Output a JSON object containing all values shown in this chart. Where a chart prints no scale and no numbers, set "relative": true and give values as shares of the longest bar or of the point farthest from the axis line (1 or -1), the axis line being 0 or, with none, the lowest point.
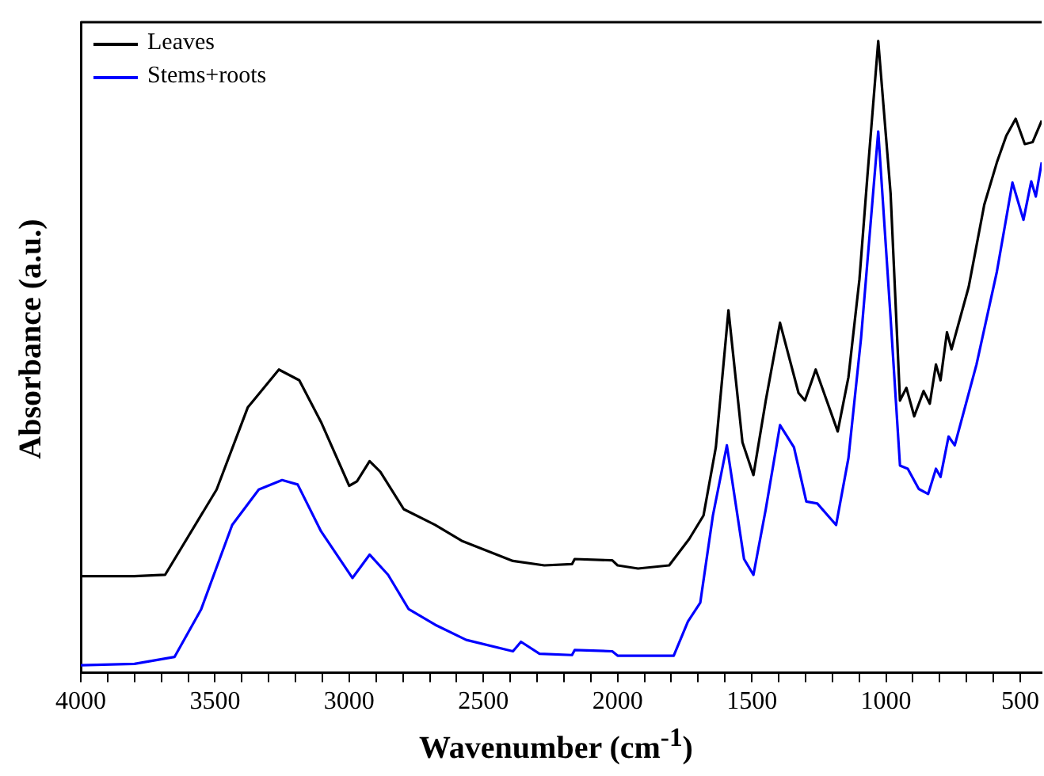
{
  "chart_data": {
    "type": "line",
    "relative": true,
    "xlabel": "Wavenumber (cm$^{-1}$)",
    "ylabel": "Absorbance (a.u.)",
    "legend": "top left",
    "marker": "none",
    "line_style": "solid",
    "xlim": [
      4000,
      420
    ],
    "xticks": [
      4000,
      {
        "value": 3900,
        "label": null
      },
      {
        "value": 3800,
        "label": null
      },
      {
        "value": 3700,
        "label": null
      },
      {
        "value": 3600,
        "label": null
      },
      3500,
      {
        "value": 3400,
        "label": null
      },
      {
        "value": 3300,
        "label": null
      },
      {
        "value": 3200,
        "label": null
      },
      {
        "value": 3100,
        "label": null
      },
      3000,
      {
        "value": 2900,
        "label": null
      },
      {
        "value": 2800,
        "label": null
      },
      {
        "value": 2700,
        "label": null
      },
      {
        "value": 2600,
        "label": null
      },
      2500,
      {
        "value": 2400,
        "label": null
      },
      {
        "value": 2300,
        "label": null
      },
      {
        "value": 2200,
        "label": null
      },
      {
        "value": 2100,
        "label": null
      },
      2000,
      {
        "value": 1900,
        "label": null
      },
      {
        "value": 1800,
        "label": null
      },
      {
        "value": 1700,
        "label": null
      },
      {
        "value": 1600,
        "label": null
      },
      1500,
      {
        "value": 1400,
        "label": null
      },
      {
        "value": 1300,
        "label": null
      },
      {
        "value": 1200,
        "label": null
      },
      {
        "value": 1100,
        "label": null
      },
      1000,
      {
        "value": 900,
        "label": null
      },
      {
        "value": 800,
        "label": null
      },
      {
        "value": 700,
        "label": null
      },
      {
        "value": 600,
        "label": null
      },
      500
    ],
    "series": [
      {
        "name": "Leaves",
        "color": "#000000",
        "x": [
          4000,
          3800,
          3686,
          3494,
          3378,
          3262,
          3186,
          3105,
          3000,
          2971,
          2924,
          2884,
          2797,
          2680,
          2581,
          2390,
          2273,
          2170,
          2160,
          2020,
          2000,
          1924,
          1808,
          1733,
          1680,
          1634,
          1587,
          1535,
          1494,
          1448,
          1395,
          1326,
          1302,
          1262,
          1180,
          1140,
          1099,
          1070,
          1029,
          983,
          948,
          924,
          895,
          860,
          837,
          814,
          797,
          773,
          756,
          692,
          634,
          587,
          552,
          517,
          483,
          454,
          420
        ],
        "values": [
          0.153,
          0.153,
          0.155,
          0.29,
          0.42,
          0.48,
          0.463,
          0.397,
          0.296,
          0.303,
          0.335,
          0.318,
          0.259,
          0.234,
          0.209,
          0.177,
          0.17,
          0.172,
          0.18,
          0.178,
          0.17,
          0.165,
          0.17,
          0.212,
          0.249,
          0.357,
          0.574,
          0.365,
          0.313,
          0.431,
          0.554,
          0.443,
          0.431,
          0.48,
          0.382,
          0.468,
          0.623,
          0.783,
          1.0,
          0.759,
          0.431,
          0.451,
          0.406,
          0.446,
          0.426,
          0.488,
          0.463,
          0.539,
          0.512,
          0.611,
          0.741,
          0.808,
          0.85,
          0.877,
          0.837,
          0.84,
          0.874
        ]
      },
      {
        "name": "Stems+roots",
        "color": "#0000ff",
        "x": [
          4000,
          3800,
          3651,
          3552,
          3436,
          3337,
          3250,
          3192,
          3105,
          2988,
          2924,
          2855,
          2779,
          2680,
          2564,
          2390,
          2360,
          2291,
          2170,
          2160,
          2020,
          2000,
          1924,
          1791,
          1738,
          1692,
          1645,
          1593,
          1529,
          1494,
          1448,
          1395,
          1343,
          1297,
          1256,
          1186,
          1140,
          1093,
          1029,
          983,
          948,
          919,
          878,
          843,
          814,
          797,
          767,
          744,
          663,
          587,
          529,
          488,
          459,
          442,
          420
        ],
        "values": [
          0.012,
          0.014,
          0.025,
          0.1,
          0.234,
          0.29,
          0.305,
          0.298,
          0.224,
          0.15,
          0.187,
          0.155,
          0.101,
          0.076,
          0.052,
          0.034,
          0.049,
          0.03,
          0.028,
          0.036,
          0.034,
          0.027,
          0.027,
          0.027,
          0.081,
          0.111,
          0.249,
          0.36,
          0.18,
          0.155,
          0.259,
          0.392,
          0.357,
          0.271,
          0.268,
          0.234,
          0.34,
          0.53,
          0.857,
          0.562,
          0.328,
          0.323,
          0.291,
          0.283,
          0.323,
          0.31,
          0.374,
          0.36,
          0.488,
          0.635,
          0.776,
          0.717,
          0.778,
          0.754,
          0.808
        ]
      }
    ]
  }
}
